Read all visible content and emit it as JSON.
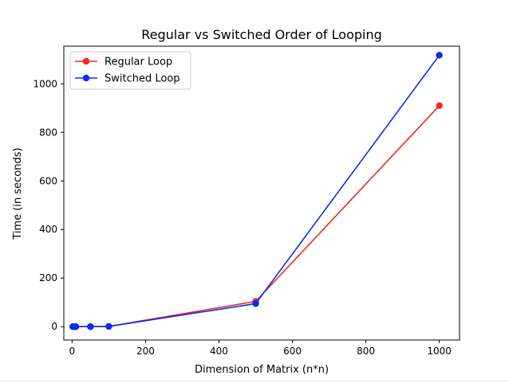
{
  "colors": {
    "regular": "#ee2b1c",
    "switched": "#0a2bf0",
    "axis": "#000000",
    "background": "#ffffff"
  },
  "chart_data": {
    "type": "line",
    "title": "Regular vs Switched Order of Looping",
    "xlabel": "Dimension of Matrix (n*n)",
    "ylabel": "Time (in seconds)",
    "xlim": [
      -22.5,
      1055
    ],
    "ylim": [
      -55,
      1155
    ],
    "xticks": [
      0,
      200,
      400,
      600,
      800,
      1000
    ],
    "yticks": [
      0,
      200,
      400,
      600,
      800,
      1000
    ],
    "grid": false,
    "legend_position": "top-left",
    "series": [
      {
        "name": "Regular Loop",
        "color": "#ee2b1c",
        "x": [
          2,
          5,
          10,
          50,
          100,
          500,
          1000
        ],
        "y": [
          0,
          0,
          0,
          0,
          1,
          104,
          910
        ]
      },
      {
        "name": "Switched Loop",
        "color": "#0a2bf0",
        "x": [
          2,
          5,
          10,
          50,
          100,
          500,
          1000
        ],
        "y": [
          0,
          0,
          0,
          0,
          1,
          95,
          1118
        ]
      }
    ]
  }
}
